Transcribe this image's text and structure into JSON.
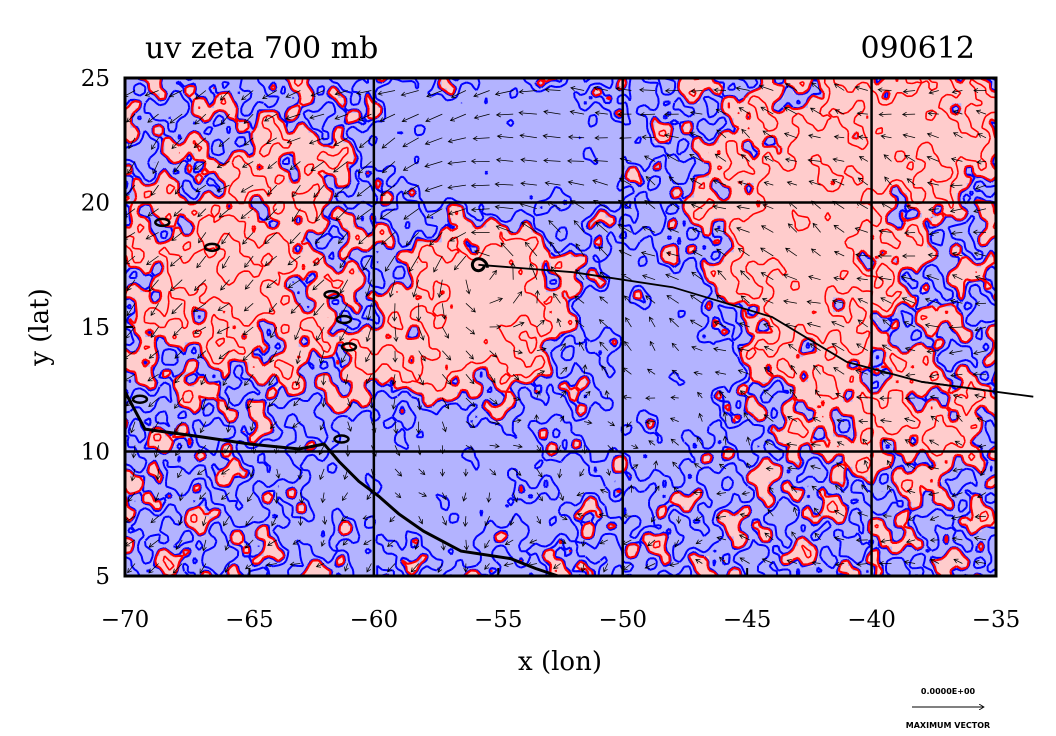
{
  "chart_data": {
    "type": "heatmap",
    "title": "uv zeta 700 mb",
    "subtitle": "090612",
    "xlabel": "x (lon)",
    "ylabel": "y (lat)",
    "xlim": [
      -70,
      -35
    ],
    "ylim": [
      5,
      25
    ],
    "x_ticks": [
      -70,
      -65,
      -60,
      -55,
      -50,
      -45,
      -40,
      -35
    ],
    "y_ticks": [
      5,
      10,
      15,
      20,
      25
    ],
    "x_tick_labels": [
      "−70",
      "−65",
      "−60",
      "−55",
      "−50",
      "−45",
      "−40",
      "−35"
    ],
    "y_tick_labels": [
      "5",
      "10",
      "15",
      "20",
      "25"
    ],
    "grid": true,
    "grid_lines_x": [
      -60,
      -50,
      -40
    ],
    "grid_lines_y": [
      10,
      20
    ],
    "colors": {
      "positive_fill": "#ffcccc",
      "negative_fill": "#b3b3ff",
      "positive_contour": "#ff0000",
      "negative_contour": "#0000ff",
      "vectors": "#000000",
      "coastline": "#000000",
      "track": "#000000"
    },
    "vortex_center": [
      -55.8,
      17.5
    ],
    "track": [
      [
        -55.8,
        17.5
      ],
      [
        -52,
        17.2
      ],
      [
        -48,
        16.6
      ],
      [
        -44,
        15.4
      ],
      [
        -41,
        13.6
      ],
      [
        -38,
        12.8
      ],
      [
        -33.5,
        12.2
      ]
    ],
    "coastline": [
      [
        -70,
        12.4
      ],
      [
        -69.2,
        10.9
      ],
      [
        -67,
        10.6
      ],
      [
        -65,
        10.3
      ],
      [
        -63,
        10.1
      ],
      [
        -62,
        10.3
      ],
      [
        -61.4,
        9.6
      ],
      [
        -60.6,
        8.8
      ],
      [
        -59.8,
        8.2
      ],
      [
        -59,
        7.5
      ],
      [
        -58,
        6.8
      ],
      [
        -56.5,
        6.0
      ],
      [
        -54.5,
        5.7
      ],
      [
        -53.5,
        5.3
      ],
      [
        -52.6,
        5.0
      ]
    ],
    "islands": [
      [
        -68.5,
        19.2
      ],
      [
        -66.5,
        18.2
      ],
      [
        -61.7,
        16.3
      ],
      [
        -61.2,
        15.3
      ],
      [
        -61.0,
        14.2
      ],
      [
        -69.4,
        12.1
      ],
      [
        -61.3,
        10.5
      ]
    ],
    "reference_vector": {
      "value_label": "0.0000E+00",
      "caption": "MAXIMUM VECTOR"
    }
  }
}
